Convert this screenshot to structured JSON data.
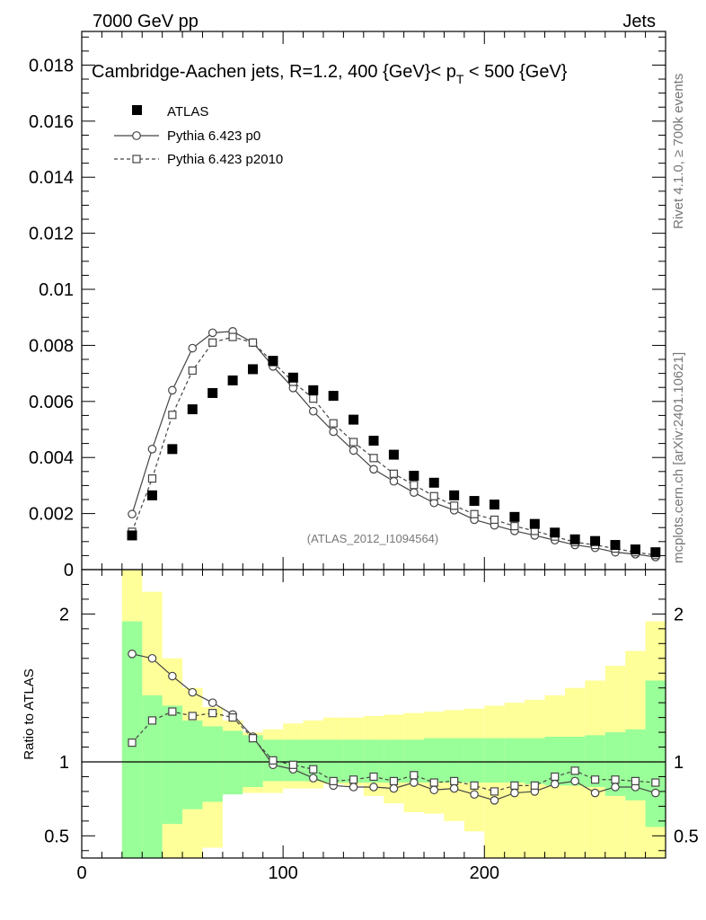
{
  "header": {
    "left": "7000 GeV pp",
    "right": "Jets"
  },
  "side_labels": {
    "rivet": "Rivet 4.1.0, ≥ 700k events",
    "mcplots": "mcplots.cern.ch [arXiv:2401.10621]"
  },
  "chart_data": {
    "type": "scatter",
    "title_prefix": "Cambridge-Aachen jets, R=1.2, 400 {GeV}< p",
    "title_sub": "T",
    "title_suffix": " < 500 {GeV}",
    "analysis_id": "(ATLAS_2012_I1094564)",
    "xlim": [
      0,
      290
    ],
    "x_ticks": [
      0,
      100,
      200
    ],
    "main": {
      "ylim": [
        0,
        0.0192
      ],
      "y_ticks": [
        "0",
        "0.002",
        "0.004",
        "0.006",
        "0.008",
        "0.01",
        "0.012",
        "0.014",
        "0.016",
        "0.018"
      ]
    },
    "ratio": {
      "ylabel": "Ratio to ATLAS",
      "ylim": [
        0.35,
        2.3
      ],
      "y_ticks": [
        "0.5",
        "1",
        "2"
      ]
    },
    "x": [
      25,
      35,
      45,
      55,
      65,
      75,
      85,
      95,
      105,
      115,
      125,
      135,
      145,
      155,
      165,
      175,
      185,
      195,
      205,
      215,
      225,
      235,
      245,
      255,
      265,
      275,
      285
    ],
    "bin_edges": [
      20,
      30,
      40,
      50,
      60,
      70,
      80,
      90,
      100,
      110,
      120,
      130,
      140,
      150,
      160,
      170,
      180,
      190,
      200,
      210,
      220,
      230,
      240,
      250,
      260,
      270,
      280,
      290
    ],
    "series": [
      {
        "name": "ATLAS",
        "marker": "filled-square",
        "values": [
          0.00122,
          0.00265,
          0.0043,
          0.00572,
          0.0063,
          0.00675,
          0.00715,
          0.00745,
          0.00685,
          0.0064,
          0.0062,
          0.00535,
          0.0046,
          0.0041,
          0.00335,
          0.0031,
          0.00265,
          0.00245,
          0.00232,
          0.00188,
          0.00163,
          0.00132,
          0.00108,
          0.00102,
          0.00088,
          0.00072,
          0.00062
        ]
      },
      {
        "name": "Pythia 6.423 p0",
        "marker": "open-circle",
        "line": "solid",
        "values": [
          0.00198,
          0.0043,
          0.0064,
          0.0079,
          0.00845,
          0.0085,
          0.0081,
          0.00725,
          0.00648,
          0.00565,
          0.00492,
          0.00425,
          0.00358,
          0.00315,
          0.00275,
          0.00238,
          0.00212,
          0.00178,
          0.00158,
          0.00138,
          0.00122,
          0.00105,
          0.00088,
          0.00078,
          0.00062,
          0.00055,
          0.00045
        ]
      },
      {
        "name": "Pythia 6.423 p2010",
        "marker": "open-square",
        "line": "dashed",
        "values": [
          0.00135,
          0.00325,
          0.00552,
          0.0071,
          0.0081,
          0.0083,
          0.0081,
          0.0074,
          0.0067,
          0.0061,
          0.00522,
          0.00455,
          0.00398,
          0.00342,
          0.00302,
          0.00262,
          0.00228,
          0.00198,
          0.00178,
          0.00155,
          0.00138,
          0.00118,
          0.00098,
          0.00088,
          0.00075,
          0.00062,
          0.00052
        ]
      }
    ],
    "ratio_series": [
      {
        "name": "Pythia 6.423 p0",
        "values": [
          1.73,
          1.7,
          1.58,
          1.47,
          1.4,
          1.32,
          1.17,
          0.98,
          0.95,
          0.89,
          0.84,
          0.83,
          0.83,
          0.82,
          0.86,
          0.81,
          0.82,
          0.78,
          0.74,
          0.79,
          0.8,
          0.85,
          0.87,
          0.79,
          0.83,
          0.83,
          0.79
        ]
      },
      {
        "name": "Pythia 6.423 p2010",
        "values": [
          1.13,
          1.28,
          1.34,
          1.31,
          1.33,
          1.3,
          1.16,
          1.01,
          0.98,
          0.95,
          0.87,
          0.88,
          0.9,
          0.87,
          0.91,
          0.86,
          0.87,
          0.84,
          0.8,
          0.84,
          0.84,
          0.9,
          0.94,
          0.88,
          0.88,
          0.87,
          0.86
        ]
      }
    ],
    "band_inner": {
      "lo": [
        0.35,
        0.35,
        0.58,
        0.68,
        0.73,
        0.78,
        0.83,
        0.87,
        0.87,
        0.87,
        0.86,
        0.86,
        0.86,
        0.86,
        0.86,
        0.86,
        0.86,
        0.86,
        0.86,
        0.86,
        0.85,
        0.84,
        0.84,
        0.83,
        0.77,
        0.74,
        0.56
      ],
      "hi": [
        1.95,
        1.45,
        1.38,
        1.28,
        1.24,
        1.21,
        1.18,
        1.15,
        1.15,
        1.15,
        1.15,
        1.15,
        1.15,
        1.15,
        1.15,
        1.16,
        1.16,
        1.16,
        1.16,
        1.16,
        1.16,
        1.17,
        1.17,
        1.18,
        1.2,
        1.22,
        1.55
      ]
    },
    "band_outer": {
      "lo": [
        0.35,
        0.35,
        0.35,
        0.35,
        0.42,
        0.79,
        0.79,
        0.79,
        0.82,
        0.82,
        0.85,
        0.84,
        0.77,
        0.72,
        0.66,
        0.65,
        0.6,
        0.53,
        0.35,
        0.35,
        0.35,
        0.35,
        0.35,
        0.35,
        0.35,
        0.35,
        0.35
      ],
      "hi": [
        2.3,
        2.15,
        1.7,
        1.5,
        1.37,
        1.28,
        1.2,
        1.22,
        1.26,
        1.28,
        1.3,
        1.3,
        1.31,
        1.32,
        1.33,
        1.34,
        1.35,
        1.36,
        1.38,
        1.4,
        1.42,
        1.45,
        1.5,
        1.55,
        1.65,
        1.75,
        1.95
      ]
    }
  }
}
